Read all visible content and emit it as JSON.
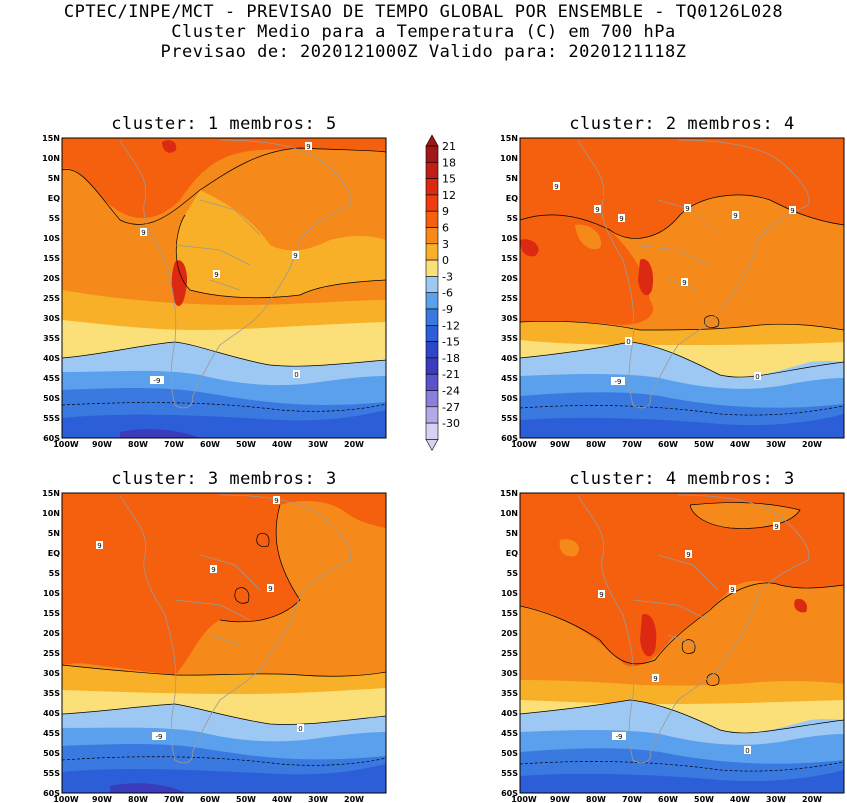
{
  "header": {
    "line1": "CPTEC/INPE/MCT - PREVISAO DE TEMPO GLOBAL POR ENSEMBLE - TQ0126L028",
    "line2": "Cluster Medio para a Temperatura (C) em 700 hPa",
    "line3": "Previsao de: 2020121000Z   Valido para: 2020121118Z"
  },
  "panels": [
    {
      "title": "cluster: 1  membros: 5"
    },
    {
      "title": "cluster: 2  membros: 4"
    },
    {
      "title": "cluster: 3  membros: 3"
    },
    {
      "title": "cluster: 4  membros: 3"
    }
  ],
  "axes": {
    "lat_labels": [
      "15N",
      "10N",
      "5N",
      "EQ",
      "5S",
      "10S",
      "15S",
      "20S",
      "25S",
      "30S",
      "35S",
      "40S",
      "45S",
      "50S",
      "55S",
      "60S"
    ],
    "lon_labels": [
      "100W",
      "90W",
      "80W",
      "70W",
      "60W",
      "50W",
      "40W",
      "30W",
      "20W"
    ]
  },
  "colorbar": {
    "labels": [
      "21",
      "18",
      "15",
      "12",
      "9",
      "6",
      "3",
      "0",
      "-3",
      "-6",
      "-9",
      "-12",
      "-15",
      "-18",
      "-21",
      "-24",
      "-27",
      "-30"
    ],
    "colors": [
      "#a01818",
      "#c21e16",
      "#dc2a12",
      "#ee3c10",
      "#f5600e",
      "#f58a1a",
      "#f7b028",
      "#fbe07a",
      "#9ec8f4",
      "#5aa0ec",
      "#3a7ae0",
      "#2c5ed8",
      "#2a48c8",
      "#3a3cbc",
      "#5a52cc",
      "#8a80dc",
      "#b2aae6",
      "#d8d2f2"
    ]
  },
  "contour_labels": {
    "p1": [
      "9",
      "9",
      "9",
      "9",
      "0",
      "-9"
    ],
    "p2": [
      "9",
      "9",
      "9",
      "9",
      "9",
      "9",
      "9",
      "0",
      "0",
      "-9"
    ],
    "p3": [
      "9",
      "9",
      "9",
      "9",
      "0",
      "-9"
    ],
    "p4": [
      "9",
      "9",
      "9",
      "9",
      "9",
      "0",
      "-9"
    ]
  },
  "colors": {
    "warm_dark": "#f5600e",
    "warm_mid": "#f58a1a",
    "warm_light": "#f7b028",
    "yellow": "#fbe07a",
    "cold_light": "#9ec8f4",
    "cold_mid": "#5aa0ec",
    "cold_deep": "#3a7ae0",
    "cold_deeper": "#2c5ed8",
    "red_core": "#dc2a12"
  }
}
